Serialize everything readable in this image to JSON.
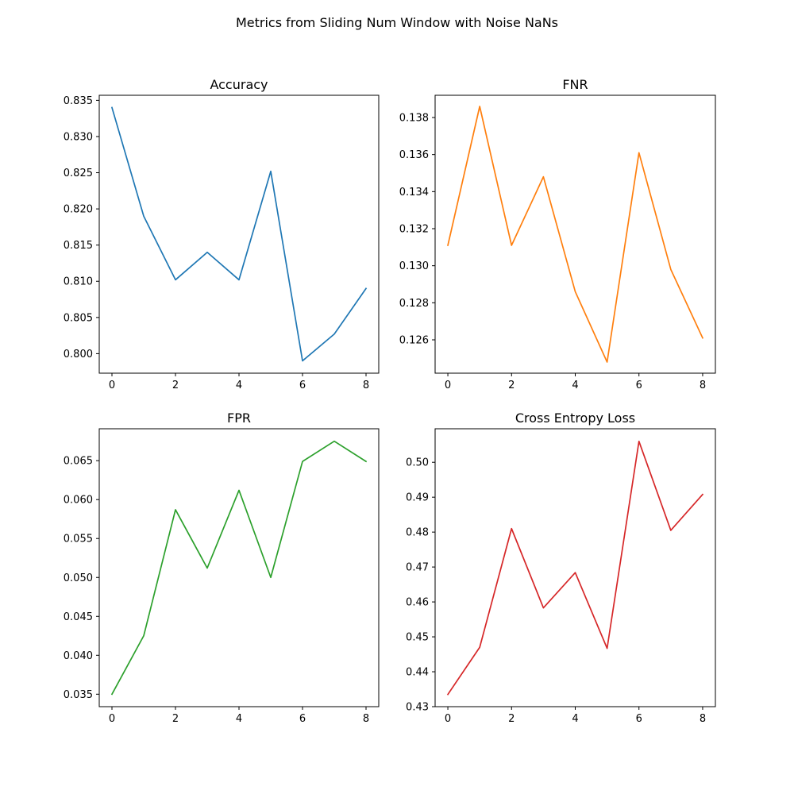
{
  "figure": {
    "suptitle": "Metrics from Sliding Num Window with Noise NaNs"
  },
  "chart_data": [
    {
      "type": "line",
      "title": "Accuracy",
      "xlabel": "",
      "ylabel": "",
      "x": [
        0,
        1,
        2,
        3,
        4,
        5,
        6,
        7,
        8
      ],
      "series": [
        {
          "color": "#1f77b4",
          "values": [
            0.834,
            0.819,
            0.8102,
            0.814,
            0.8102,
            0.8252,
            0.799,
            0.8027,
            0.809
          ]
        }
      ],
      "xticks": [
        0,
        2,
        4,
        6,
        8
      ],
      "xtick_labels": [
        "0",
        "2",
        "4",
        "6",
        "8"
      ],
      "yticks": [
        0.8,
        0.805,
        0.81,
        0.815,
        0.82,
        0.825,
        0.83,
        0.835
      ],
      "ytick_labels": [
        "0.800",
        "0.805",
        "0.810",
        "0.815",
        "0.820",
        "0.825",
        "0.830",
        "0.835"
      ],
      "xlim": [
        -0.4,
        8.4
      ],
      "ylim": [
        0.7973,
        0.8357
      ],
      "grid": false
    },
    {
      "type": "line",
      "title": "FNR",
      "xlabel": "",
      "ylabel": "",
      "x": [
        0,
        1,
        2,
        3,
        4,
        5,
        6,
        7,
        8
      ],
      "series": [
        {
          "color": "#ff7f0e",
          "values": [
            0.1311,
            0.1386,
            0.1311,
            0.1348,
            0.1286,
            0.1248,
            0.1361,
            0.1298,
            0.1261
          ]
        }
      ],
      "xticks": [
        0,
        2,
        4,
        6,
        8
      ],
      "xtick_labels": [
        "0",
        "2",
        "4",
        "6",
        "8"
      ],
      "yticks": [
        0.126,
        0.128,
        0.13,
        0.132,
        0.134,
        0.136,
        0.138
      ],
      "ytick_labels": [
        "0.126",
        "0.128",
        "0.130",
        "0.132",
        "0.134",
        "0.136",
        "0.138"
      ],
      "xlim": [
        -0.4,
        8.4
      ],
      "ylim": [
        0.1242,
        0.1392
      ],
      "grid": false
    },
    {
      "type": "line",
      "title": "FPR",
      "xlabel": "",
      "ylabel": "",
      "x": [
        0,
        1,
        2,
        3,
        4,
        5,
        6,
        7,
        8
      ],
      "series": [
        {
          "color": "#2ca02c",
          "values": [
            0.035,
            0.0425,
            0.0587,
            0.0512,
            0.0612,
            0.05,
            0.0649,
            0.0675,
            0.0649
          ]
        }
      ],
      "xticks": [
        0,
        2,
        4,
        6,
        8
      ],
      "xtick_labels": [
        "0",
        "2",
        "4",
        "6",
        "8"
      ],
      "yticks": [
        0.035,
        0.04,
        0.045,
        0.05,
        0.055,
        0.06,
        0.065
      ],
      "ytick_labels": [
        "0.035",
        "0.040",
        "0.045",
        "0.050",
        "0.055",
        "0.060",
        "0.065"
      ],
      "xlim": [
        -0.4,
        8.4
      ],
      "ylim": [
        0.0334,
        0.0691
      ],
      "grid": false
    },
    {
      "type": "line",
      "title": "Cross Entropy Loss",
      "xlabel": "",
      "ylabel": "",
      "x": [
        0,
        1,
        2,
        3,
        4,
        5,
        6,
        7,
        8
      ],
      "series": [
        {
          "color": "#d62728",
          "values": [
            0.4335,
            0.447,
            0.481,
            0.4583,
            0.4684,
            0.4467,
            0.506,
            0.4805,
            0.4908
          ]
        }
      ],
      "xticks": [
        0,
        2,
        4,
        6,
        8
      ],
      "xtick_labels": [
        "0",
        "2",
        "4",
        "6",
        "8"
      ],
      "yticks": [
        0.43,
        0.44,
        0.45,
        0.46,
        0.47,
        0.48,
        0.49,
        0.5
      ],
      "ytick_labels": [
        "0.43",
        "0.44",
        "0.45",
        "0.46",
        "0.47",
        "0.48",
        "0.49",
        "0.50"
      ],
      "xlim": [
        -0.4,
        8.4
      ],
      "ylim": [
        0.43,
        0.5096
      ],
      "grid": false
    }
  ]
}
